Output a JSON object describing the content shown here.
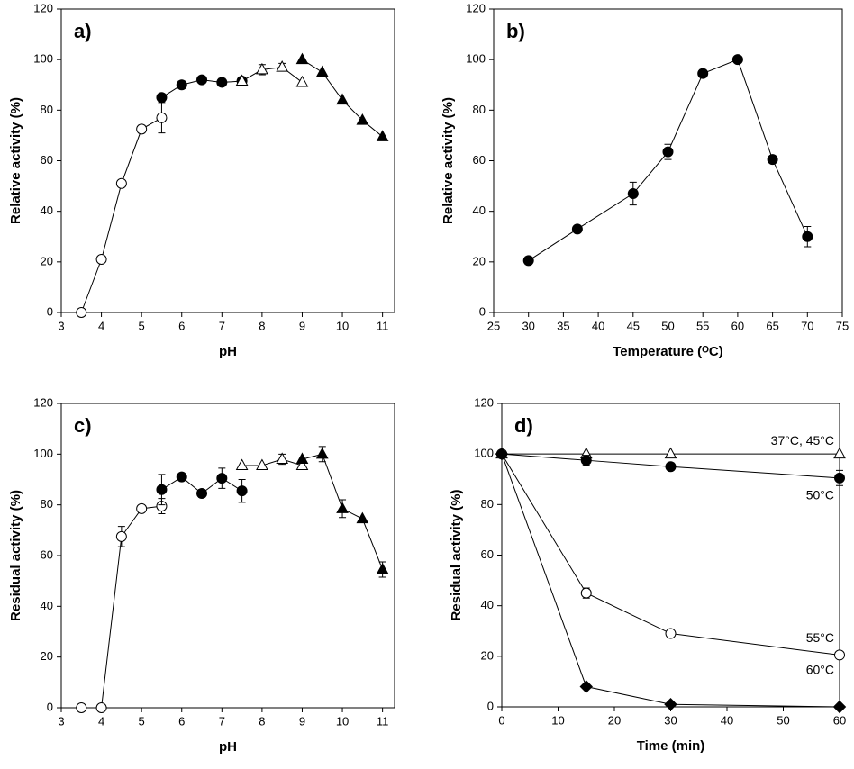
{
  "chart_data": [
    {
      "type": "line",
      "title": "a)",
      "xlabel": "pH",
      "ylabel": "Relative activity (%)",
      "xlim": [
        3,
        11.3
      ],
      "xticks": [
        3,
        4,
        5,
        6,
        7,
        8,
        9,
        10,
        11
      ],
      "ylim": [
        0,
        120
      ],
      "yticks": [
        0,
        20,
        40,
        60,
        80,
        100,
        120
      ],
      "series": [
        {
          "color": "#000000",
          "marker": "circle-open",
          "x": [
            3.5,
            4,
            4.5,
            5,
            5.5
          ],
          "values": [
            0,
            21,
            51,
            72.5,
            77
          ],
          "errors": [
            null,
            null,
            null,
            1.5,
            6
          ]
        },
        {
          "color": "#000000",
          "marker": "circle",
          "x": [
            5.5,
            6,
            6.5,
            7,
            7.5
          ],
          "values": [
            85,
            90,
            92,
            91,
            91.5
          ],
          "errors": [
            1.5,
            1.5,
            null,
            1.5,
            null
          ]
        },
        {
          "color": "#000000",
          "marker": "triangle-open",
          "x": [
            7.5,
            8,
            8.5,
            9
          ],
          "values": [
            91.5,
            96,
            97,
            91
          ],
          "errors": [
            null,
            2,
            1.5,
            null
          ]
        },
        {
          "color": "#000000",
          "marker": "triangle",
          "x": [
            9,
            9.5,
            10,
            10.5,
            11
          ],
          "values": [
            100,
            95,
            84,
            76,
            69.5
          ],
          "errors": [
            null,
            null,
            null,
            null,
            null
          ]
        }
      ]
    },
    {
      "type": "line",
      "title": "b)",
      "xlabel": "Temperature (ᴼC)",
      "ylabel": "Relative activity (%)",
      "xlim": [
        25,
        75
      ],
      "xticks": [
        25,
        30,
        35,
        40,
        45,
        50,
        55,
        60,
        65,
        70,
        75
      ],
      "ylim": [
        0,
        120
      ],
      "yticks": [
        0,
        20,
        40,
        60,
        80,
        100,
        120
      ],
      "series": [
        {
          "color": "#000000",
          "marker": "circle",
          "x": [
            30,
            37,
            45,
            50,
            55,
            60,
            65,
            70
          ],
          "values": [
            20.5,
            33,
            47,
            63.5,
            94.5,
            100,
            60.5,
            30
          ],
          "errors": [
            1.5,
            null,
            4.5,
            3,
            1.5,
            null,
            null,
            4
          ]
        }
      ]
    },
    {
      "type": "line",
      "title": "c)",
      "xlabel": "pH",
      "ylabel": "Residual activity (%)",
      "xlim": [
        3,
        11.3
      ],
      "xticks": [
        3,
        4,
        5,
        6,
        7,
        8,
        9,
        10,
        11
      ],
      "ylim": [
        0,
        120
      ],
      "yticks": [
        0,
        20,
        40,
        60,
        80,
        100,
        120
      ],
      "series": [
        {
          "color": "#000000",
          "marker": "circle-open",
          "x": [
            3.5,
            4,
            4.5,
            5,
            5.5
          ],
          "values": [
            0,
            0,
            67.5,
            78.5,
            79.5
          ],
          "errors": [
            null,
            null,
            4,
            null,
            3
          ]
        },
        {
          "color": "#000000",
          "marker": "circle",
          "x": [
            5.5,
            6,
            6.5,
            7,
            7.5
          ],
          "values": [
            86,
            91,
            84.5,
            90.5,
            85.5
          ],
          "errors": [
            6,
            null,
            1.5,
            4,
            4.5
          ]
        },
        {
          "color": "#000000",
          "marker": "triangle-open",
          "x": [
            7.5,
            8,
            8.5,
            9
          ],
          "values": [
            95.5,
            95.5,
            98,
            95.5
          ],
          "errors": [
            null,
            null,
            2,
            1.5
          ]
        },
        {
          "color": "#000000",
          "marker": "triangle",
          "x": [
            9,
            9.5,
            10,
            10.5,
            11
          ],
          "values": [
            98,
            100,
            78.5,
            74.5,
            54.5
          ],
          "errors": [
            null,
            3,
            3.5,
            null,
            3
          ]
        }
      ]
    },
    {
      "type": "line",
      "title": "d)",
      "xlabel": "Time (min)",
      "ylabel": "Residual activity (%)",
      "xlim": [
        0,
        60
      ],
      "xticks": [
        0,
        10,
        20,
        30,
        40,
        50,
        60
      ],
      "ylim": [
        0,
        120
      ],
      "yticks": [
        0,
        20,
        40,
        60,
        80,
        100,
        120
      ],
      "series": [
        {
          "name": "37°C, 45°C",
          "color": "#000000",
          "marker": "triangle-open",
          "x": [
            0,
            15,
            30,
            60
          ],
          "values": [
            100,
            100,
            100,
            100
          ],
          "errors": [
            null,
            null,
            null,
            null
          ]
        },
        {
          "name": "50°C",
          "color": "#000000",
          "marker": "circle",
          "x": [
            0,
            15,
            30,
            60
          ],
          "values": [
            100,
            97.5,
            95,
            90.5
          ],
          "errors": [
            null,
            2,
            1.5,
            3
          ]
        },
        {
          "name": "55°C",
          "color": "#000000",
          "marker": "circle-open",
          "x": [
            0,
            15,
            30,
            60
          ],
          "values": [
            100,
            45,
            29,
            20.5
          ],
          "errors": [
            null,
            2,
            null,
            null
          ]
        },
        {
          "name": "60°C",
          "color": "#000000",
          "marker": "diamond",
          "x": [
            0,
            15,
            30,
            60
          ],
          "values": [
            100,
            8,
            1,
            0
          ],
          "errors": [
            null,
            null,
            null,
            null
          ]
        }
      ]
    }
  ]
}
